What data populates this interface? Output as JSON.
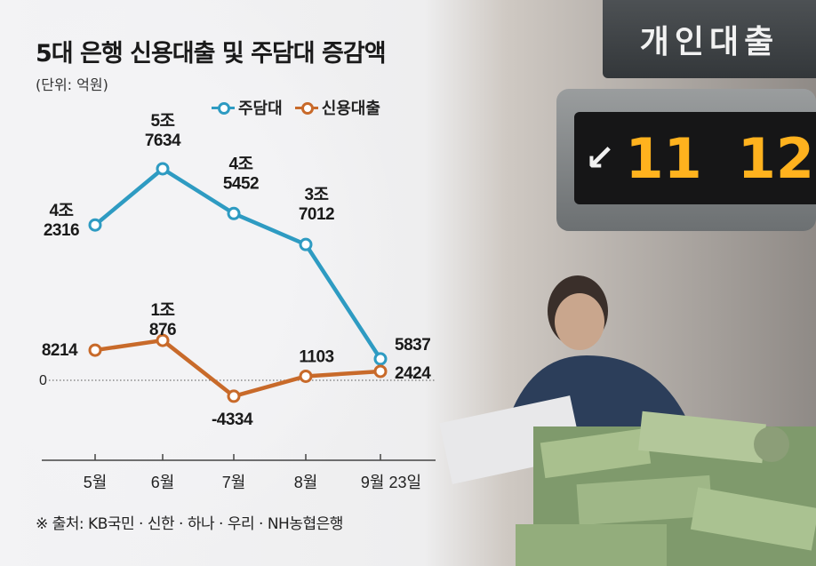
{
  "photo": {
    "sign_text": "개인대출",
    "counter_left": "11",
    "counter_right": "12",
    "arrow_left": "↙",
    "arrow_right": "↘",
    "colors": {
      "sign": "#3e4245",
      "screen": "#161617",
      "digits": "#ffb21e"
    }
  },
  "chart_data": {
    "type": "line",
    "title": "5대 은행 신용대출 및 주담대 증감액",
    "unit_label": "(단위: 억원)",
    "categories": [
      "5월",
      "6월",
      "7월",
      "8월",
      "9월 23일"
    ],
    "zero_label": "0",
    "series": [
      {
        "name": "주담대",
        "color": "#2e9bc2",
        "values": [
          42316,
          57634,
          45452,
          37012,
          5837
        ],
        "labels": [
          [
            "4조",
            "2316"
          ],
          [
            "5조",
            "7634"
          ],
          [
            "4조",
            "5452"
          ],
          [
            "3조",
            "7012"
          ],
          [
            "5837"
          ]
        ]
      },
      {
        "name": "신용대출",
        "color": "#c86a2a",
        "values": [
          8214,
          10876,
          -4334,
          1103,
          2424
        ],
        "labels": [
          [
            "8214"
          ],
          [
            "1조",
            "876"
          ],
          [
            "-4334"
          ],
          [
            "1103"
          ],
          [
            "2424"
          ]
        ]
      }
    ],
    "legend_position": "top",
    "grid": false
  },
  "source": "※ 출처: KB국민 · 신한 · 하나 · 우리 · NH농협은행"
}
